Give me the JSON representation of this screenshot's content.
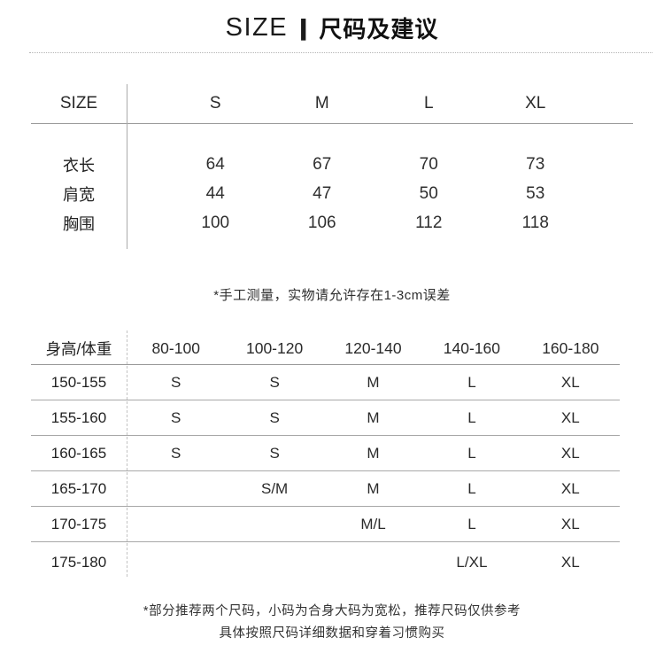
{
  "title": {
    "en": "SIZE",
    "separator": "|",
    "zh": "尺码及建议"
  },
  "colors": {
    "text": "#1f1f1f",
    "line_solid": "#999999",
    "line_dashed": "#c3c3c3"
  },
  "size_table": {
    "header": [
      "SIZE",
      "S",
      "M",
      "L",
      "XL"
    ],
    "rows": [
      {
        "label": "衣长",
        "values": [
          "64",
          "67",
          "70",
          "73"
        ]
      },
      {
        "label": "肩宽",
        "values": [
          "44",
          "47",
          "50",
          "53"
        ]
      },
      {
        "label": "胸围",
        "values": [
          "100",
          "106",
          "112",
          "118"
        ]
      }
    ],
    "note": "*手工测量，实物请允许存在1-3cm误差"
  },
  "recommendation_table": {
    "corner_label": "身高/体重",
    "weight_columns": [
      "80-100",
      "100-120",
      "120-140",
      "140-160",
      "160-180"
    ],
    "rows": [
      {
        "label": "150-155",
        "values": [
          "S",
          "S",
          "M",
          "L",
          "XL"
        ]
      },
      {
        "label": "155-160",
        "values": [
          "S",
          "S",
          "M",
          "L",
          "XL"
        ]
      },
      {
        "label": "160-165",
        "values": [
          "S",
          "S",
          "M",
          "L",
          "XL"
        ]
      },
      {
        "label": "165-170",
        "values": [
          "",
          "S/M",
          "M",
          "L",
          "XL"
        ]
      },
      {
        "label": "170-175",
        "values": [
          "",
          "",
          "M/L",
          "L",
          "XL"
        ]
      },
      {
        "label": "175-180",
        "values": [
          "",
          "",
          "",
          "L/XL",
          "XL"
        ]
      }
    ]
  },
  "footer": {
    "line1": "*部分推荐两个尺码，小码为合身大码为宽松，推荐尺码仅供参考",
    "line2": "具体按照尺码详细数据和穿着习惯购买"
  }
}
